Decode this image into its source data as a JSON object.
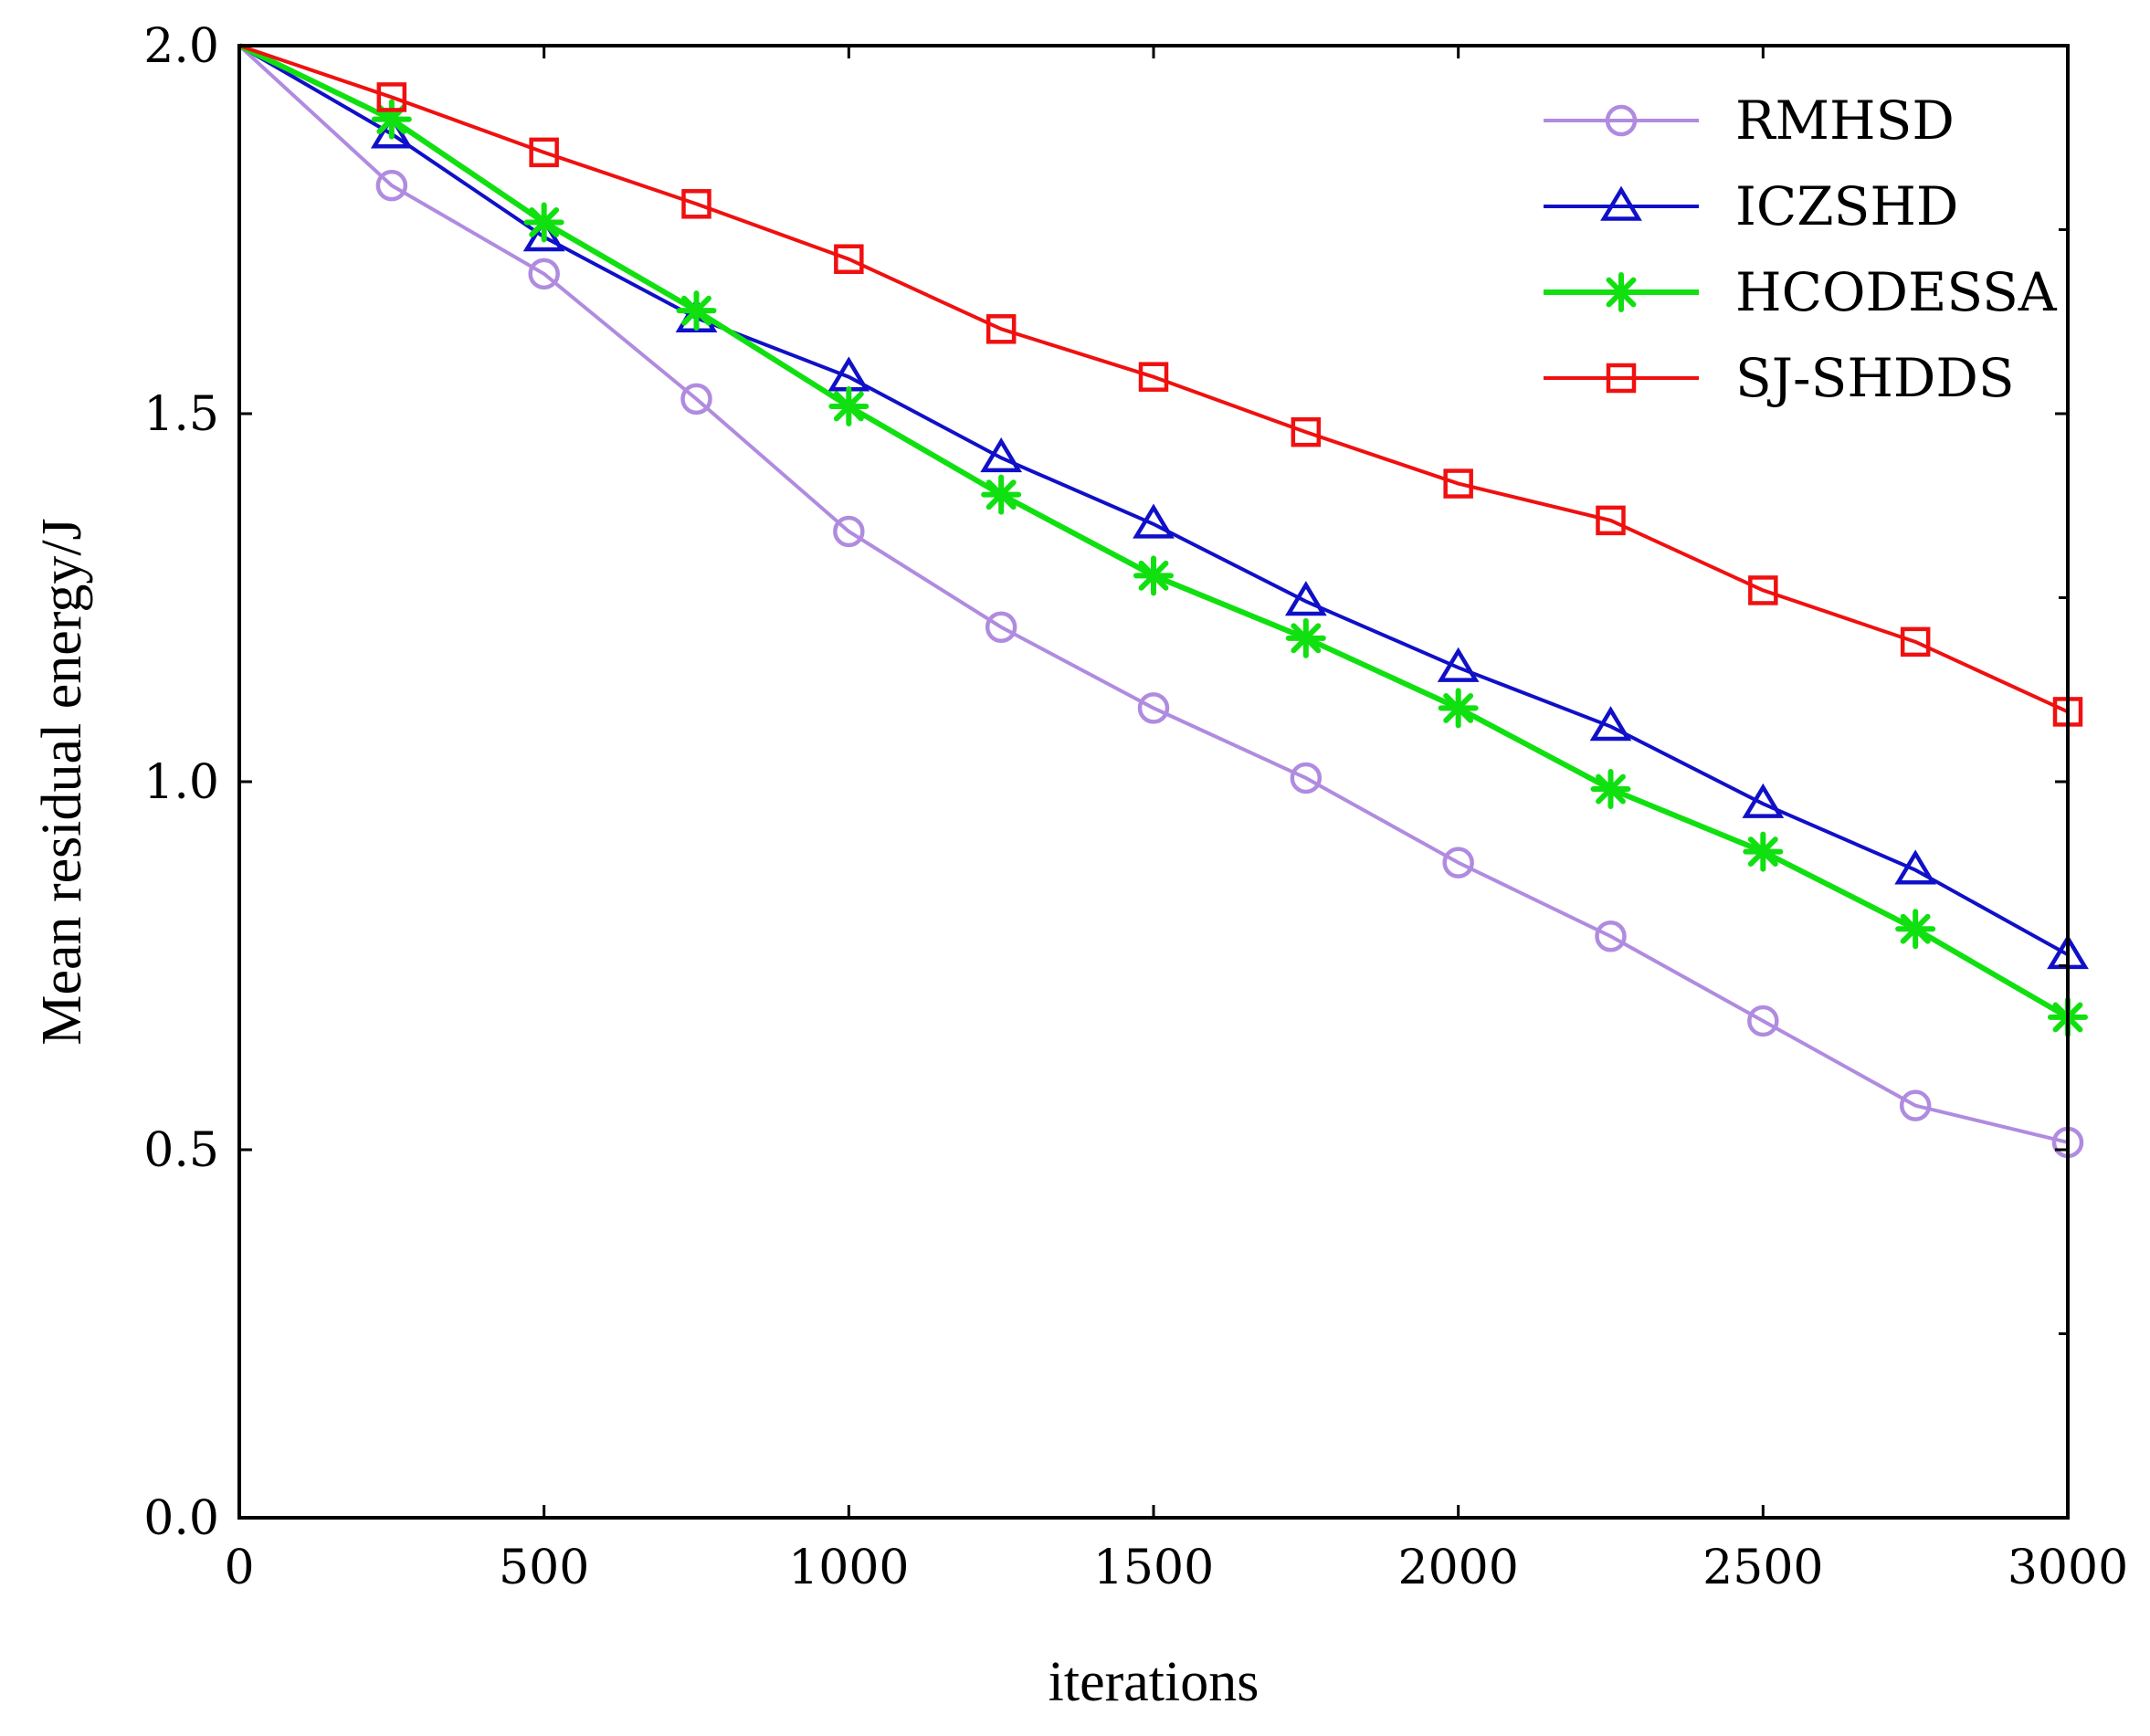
{
  "chart_data": {
    "type": "line",
    "title": "",
    "xlabel": "iterations",
    "ylabel": "Mean residual energy/J",
    "xlim": [
      0,
      3000
    ],
    "ylim": [
      0.0,
      2.0
    ],
    "xticks": [
      0,
      500,
      1000,
      1500,
      2000,
      2500,
      3000
    ],
    "xtick_labels": [
      "0",
      "500",
      "1000",
      "1500",
      "2000",
      "2500",
      "3000"
    ],
    "yticks": [
      0.0,
      0.5,
      1.0,
      1.5,
      2.0
    ],
    "ytick_labels": [
      "0.0",
      "0.5",
      "1.0",
      "1.5",
      "2.0"
    ],
    "grid": false,
    "legend_position": "top-right",
    "x": [
      0,
      250,
      500,
      750,
      1000,
      1250,
      1500,
      1750,
      2000,
      2250,
      2500,
      2750,
      3000
    ],
    "series": [
      {
        "name": "RMHSD",
        "color": "#b08be0",
        "marker": "circle",
        "values": [
          2.0,
          1.81,
          1.69,
          1.52,
          1.34,
          1.21,
          1.1,
          1.005,
          0.89,
          0.79,
          0.675,
          0.56,
          0.51
        ]
      },
      {
        "name": "ICZSHD",
        "color": "#1010c8",
        "marker": "triangle",
        "values": [
          2.0,
          1.88,
          1.74,
          1.63,
          1.55,
          1.44,
          1.35,
          1.245,
          1.155,
          1.075,
          0.97,
          0.88,
          0.765
        ]
      },
      {
        "name": "HCODESSA",
        "color": "#10e010",
        "marker": "star",
        "values": [
          2.0,
          1.9,
          1.76,
          1.64,
          1.51,
          1.39,
          1.28,
          1.195,
          1.1,
          0.99,
          0.905,
          0.8,
          0.68
        ]
      },
      {
        "name": "SJ-SHDDS",
        "color": "#f01010",
        "marker": "square",
        "values": [
          2.0,
          1.93,
          1.855,
          1.785,
          1.71,
          1.615,
          1.55,
          1.475,
          1.405,
          1.355,
          1.26,
          1.19,
          1.095
        ]
      }
    ]
  }
}
